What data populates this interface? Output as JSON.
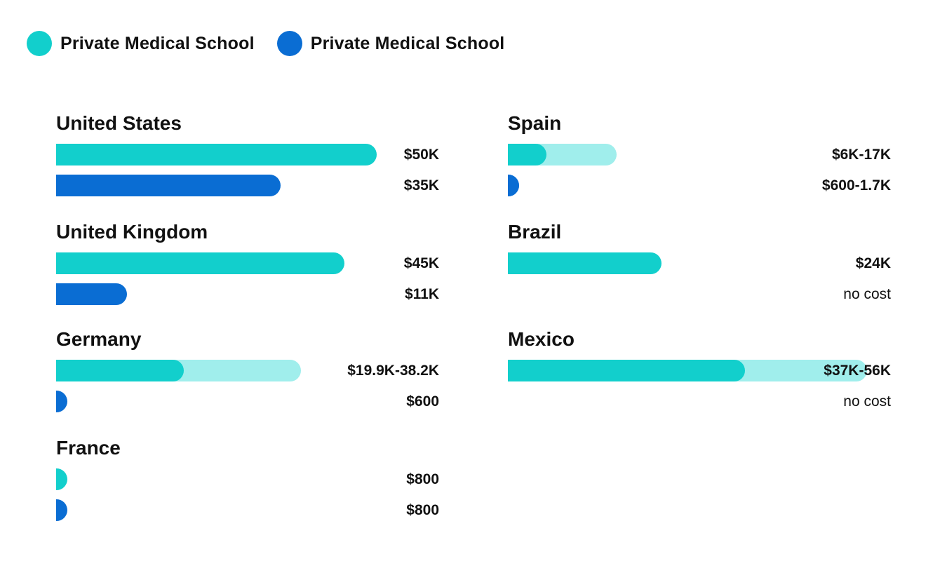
{
  "legend": [
    {
      "label": "Private Medical School",
      "color": "#12cfcc"
    },
    {
      "label": "Private Medical School",
      "color": "#0a6dd3"
    }
  ],
  "colors": {
    "teal": "#12cfcc",
    "teal_light": "#a0eeec",
    "blue": "#0a6dd3",
    "blue_light": "#2e96ff"
  },
  "chart_data": {
    "type": "bar",
    "orientation": "horizontal",
    "unit": "USD",
    "xlim": [
      0,
      52000
    ],
    "series_names": [
      "Private Medical School",
      "Private Medical School"
    ],
    "groups": [
      {
        "country": "United States",
        "bars": [
          {
            "label": "$50K",
            "min": 50000,
            "max": 50000
          },
          {
            "label": "$35K",
            "min": 35000,
            "max": 35000
          }
        ]
      },
      {
        "country": "United Kingdom",
        "bars": [
          {
            "label": "$45K",
            "min": 45000,
            "max": 45000
          },
          {
            "label": "$11K",
            "min": 11000,
            "max": 11000
          }
        ]
      },
      {
        "country": "Germany",
        "bars": [
          {
            "label": "$19.9K-38.2K",
            "min": 19900,
            "max": 38200
          },
          {
            "label": "$600",
            "min": 600,
            "max": 600
          }
        ]
      },
      {
        "country": "France",
        "bars": [
          {
            "label": "$800",
            "min": 800,
            "max": 800
          },
          {
            "label": "$800",
            "min": 800,
            "max": 800
          }
        ]
      },
      {
        "country": "Spain",
        "bars": [
          {
            "label": "$6K-17K",
            "min": 6000,
            "max": 17000
          },
          {
            "label": "$600-1.7K",
            "min": 600,
            "max": 1700
          }
        ]
      },
      {
        "country": "Brazil",
        "bars": [
          {
            "label": "$24K",
            "min": 24000,
            "max": 24000
          },
          {
            "label": "no cost",
            "min": 0,
            "max": 0
          }
        ]
      },
      {
        "country": "Mexico",
        "bars": [
          {
            "label": "$37K-56K",
            "min": 37000,
            "max": 56000
          },
          {
            "label": "no cost",
            "min": 0,
            "max": 0
          }
        ]
      }
    ]
  }
}
